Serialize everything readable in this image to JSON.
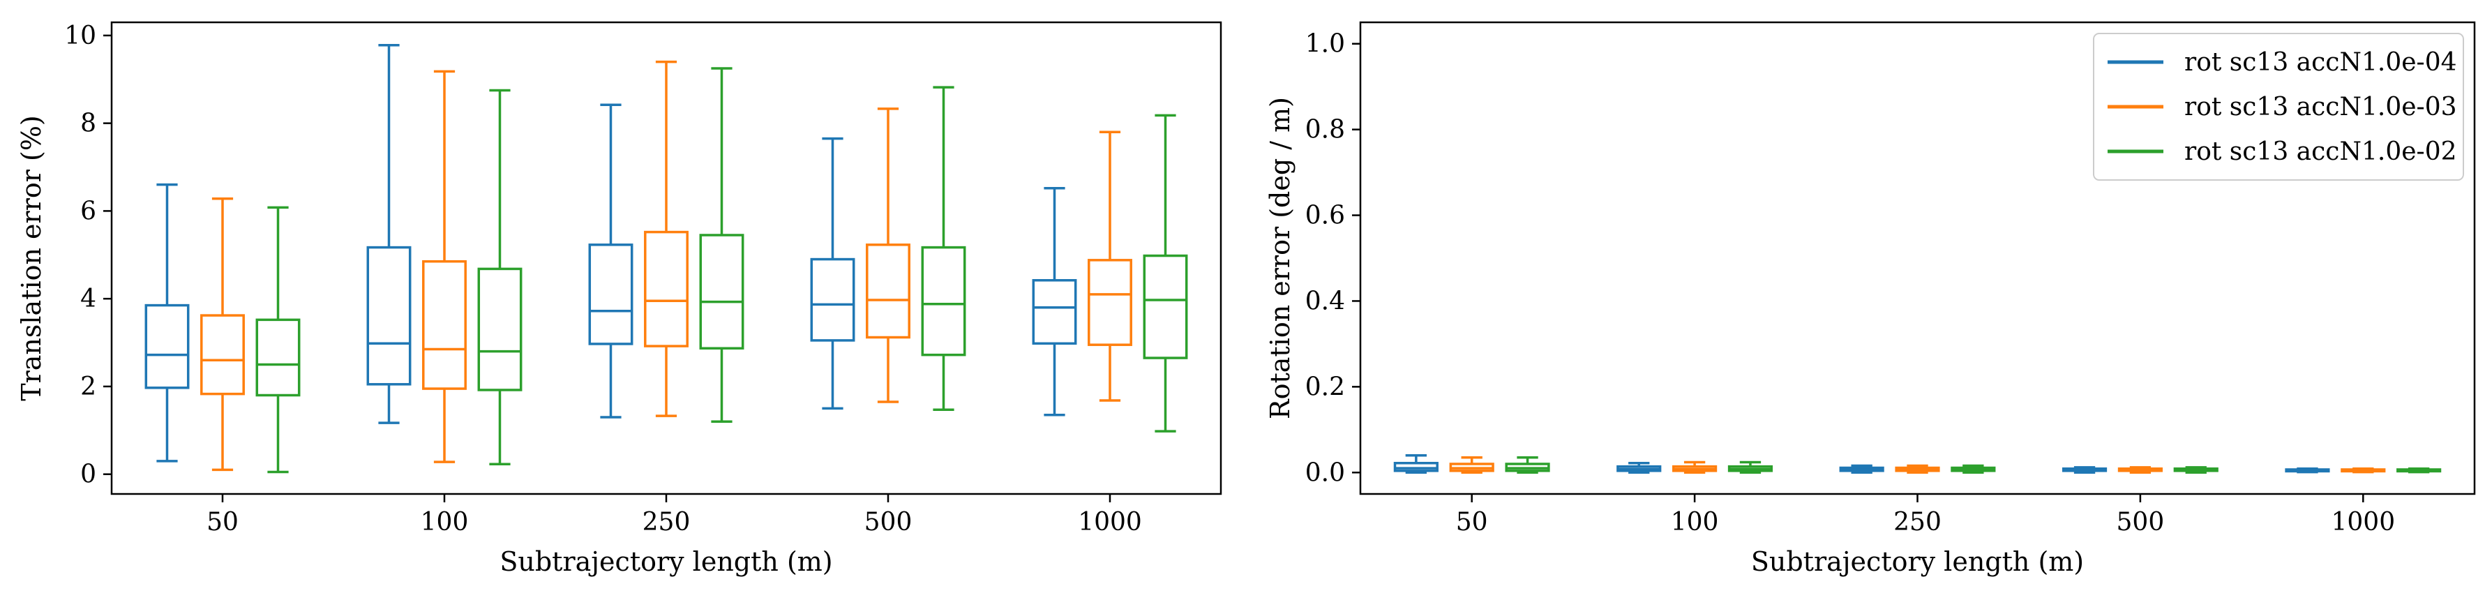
{
  "chart_data": [
    {
      "type": "box",
      "xlabel": "Subtrajectory length (m)",
      "ylabel": "Translation error (%)",
      "ylim": [
        -0.45,
        10.3
      ],
      "yticks": [
        0,
        2,
        4,
        6,
        8,
        10
      ],
      "categories": [
        "50",
        "100",
        "250",
        "500",
        "1000"
      ],
      "grid": false,
      "series": [
        {
          "color": "#1f77b4",
          "boxes": [
            {
              "whislo": 0.3,
              "q1": 1.97,
              "med": 2.72,
              "q3": 3.85,
              "whishi": 6.6
            },
            {
              "whislo": 1.17,
              "q1": 2.05,
              "med": 2.98,
              "q3": 5.17,
              "whishi": 9.78
            },
            {
              "whislo": 1.3,
              "q1": 2.97,
              "med": 3.72,
              "q3": 5.23,
              "whishi": 8.42
            },
            {
              "whislo": 1.5,
              "q1": 3.05,
              "med": 3.87,
              "q3": 4.9,
              "whishi": 7.65
            },
            {
              "whislo": 1.35,
              "q1": 2.98,
              "med": 3.8,
              "q3": 4.42,
              "whishi": 6.52
            }
          ]
        },
        {
          "color": "#ff7f0e",
          "boxes": [
            {
              "whislo": 0.1,
              "q1": 1.83,
              "med": 2.6,
              "q3": 3.62,
              "whishi": 6.28
            },
            {
              "whislo": 0.28,
              "q1": 1.95,
              "med": 2.85,
              "q3": 4.85,
              "whishi": 9.18
            },
            {
              "whislo": 1.33,
              "q1": 2.92,
              "med": 3.95,
              "q3": 5.52,
              "whishi": 9.4
            },
            {
              "whislo": 1.65,
              "q1": 3.12,
              "med": 3.97,
              "q3": 5.23,
              "whishi": 8.33
            },
            {
              "whislo": 1.68,
              "q1": 2.95,
              "med": 4.1,
              "q3": 4.88,
              "whishi": 7.8
            }
          ]
        },
        {
          "color": "#2ca02c",
          "boxes": [
            {
              "whislo": 0.05,
              "q1": 1.8,
              "med": 2.5,
              "q3": 3.52,
              "whishi": 6.08
            },
            {
              "whislo": 0.23,
              "q1": 1.92,
              "med": 2.8,
              "q3": 4.68,
              "whishi": 8.75
            },
            {
              "whislo": 1.2,
              "q1": 2.87,
              "med": 3.93,
              "q3": 5.45,
              "whishi": 9.25
            },
            {
              "whislo": 1.47,
              "q1": 2.72,
              "med": 3.88,
              "q3": 5.17,
              "whishi": 8.82
            },
            {
              "whislo": 0.98,
              "q1": 2.65,
              "med": 3.97,
              "q3": 4.98,
              "whishi": 8.18
            }
          ]
        }
      ]
    },
    {
      "type": "box",
      "xlabel": "Subtrajectory length (m)",
      "ylabel": "Rotation error (deg / m)",
      "ylim": [
        -0.05,
        1.05
      ],
      "yticks": [
        0.0,
        0.2,
        0.4,
        0.6,
        0.8,
        1.0
      ],
      "yticks_format": "fixed1",
      "categories": [
        "50",
        "100",
        "250",
        "500",
        "1000"
      ],
      "grid": false,
      "legend_position": "top-right",
      "series": [
        {
          "name": "rot sc13 accN1.0e-04",
          "color": "#1f77b4",
          "boxes": [
            {
              "whislo": 0.0,
              "q1": 0.004,
              "med": 0.01,
              "q3": 0.022,
              "whishi": 0.04
            },
            {
              "whislo": 0.0,
              "q1": 0.004,
              "med": 0.008,
              "q3": 0.014,
              "whishi": 0.022
            },
            {
              "whislo": 0.0,
              "q1": 0.004,
              "med": 0.007,
              "q3": 0.011,
              "whishi": 0.016
            },
            {
              "whislo": 0.0,
              "q1": 0.004,
              "med": 0.006,
              "q3": 0.009,
              "whishi": 0.012
            },
            {
              "whislo": 0.001,
              "q1": 0.003,
              "med": 0.005,
              "q3": 0.007,
              "whishi": 0.009
            }
          ]
        },
        {
          "name": "rot sc13 accN1.0e-03",
          "color": "#ff7f0e",
          "boxes": [
            {
              "whislo": 0.0,
              "q1": 0.004,
              "med": 0.01,
              "q3": 0.02,
              "whishi": 0.035
            },
            {
              "whislo": 0.0,
              "q1": 0.004,
              "med": 0.008,
              "q3": 0.014,
              "whishi": 0.024
            },
            {
              "whislo": 0.0,
              "q1": 0.004,
              "med": 0.007,
              "q3": 0.011,
              "whishi": 0.016
            },
            {
              "whislo": 0.0,
              "q1": 0.004,
              "med": 0.006,
              "q3": 0.009,
              "whishi": 0.012
            },
            {
              "whislo": 0.001,
              "q1": 0.003,
              "med": 0.005,
              "q3": 0.007,
              "whishi": 0.009
            }
          ]
        },
        {
          "name": "rot sc13 accN1.0e-02",
          "color": "#2ca02c",
          "boxes": [
            {
              "whislo": 0.0,
              "q1": 0.004,
              "med": 0.01,
              "q3": 0.02,
              "whishi": 0.035
            },
            {
              "whislo": 0.0,
              "q1": 0.004,
              "med": 0.008,
              "q3": 0.014,
              "whishi": 0.024
            },
            {
              "whislo": 0.0,
              "q1": 0.004,
              "med": 0.007,
              "q3": 0.011,
              "whishi": 0.016
            },
            {
              "whislo": 0.0,
              "q1": 0.004,
              "med": 0.006,
              "q3": 0.009,
              "whishi": 0.012
            },
            {
              "whislo": 0.001,
              "q1": 0.003,
              "med": 0.005,
              "q3": 0.007,
              "whishi": 0.009
            }
          ]
        }
      ]
    }
  ]
}
